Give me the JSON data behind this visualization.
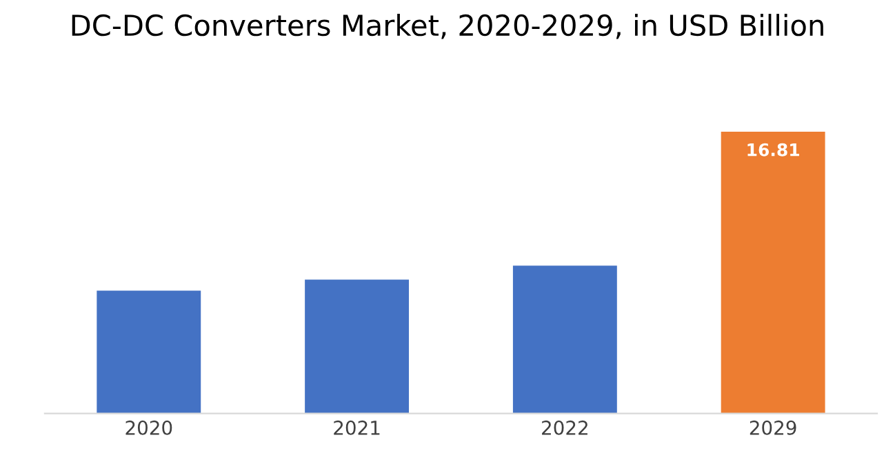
{
  "chart_data": {
    "type": "bar",
    "title": "DC-DC Converters Market, 2020-2029, in USD Billion",
    "categories": [
      "2020",
      "2021",
      "2022",
      "2029"
    ],
    "values": [
      7.33,
      7.99,
      8.82,
      16.81
    ],
    "colors": [
      "#4472c4",
      "#4472c4",
      "#4472c4",
      "#ed7d31"
    ],
    "value_labels": [
      null,
      null,
      null,
      "16.81"
    ],
    "ylim": [
      0,
      16.81
    ],
    "grid": false,
    "legend": false,
    "tick_labels": "x"
  }
}
